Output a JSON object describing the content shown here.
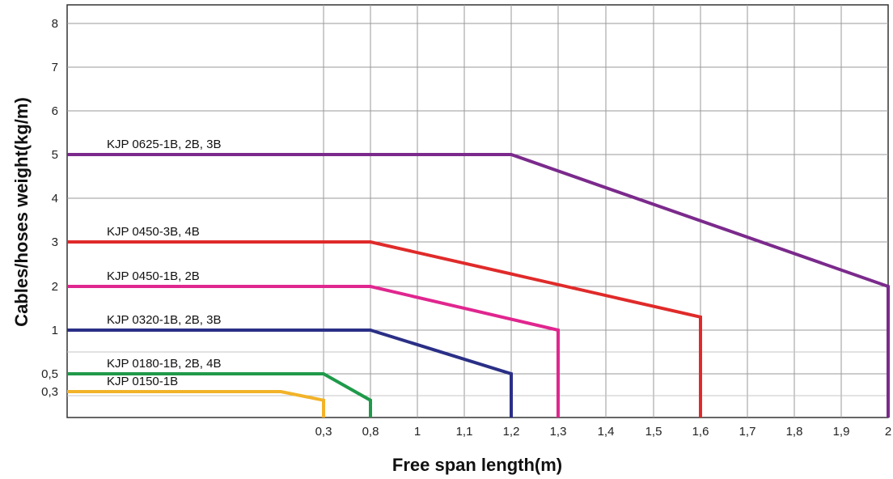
{
  "chart_data": {
    "type": "line",
    "xlabel": "Free span length(m)",
    "ylabel": "Cables/hoses weight(kg/m)",
    "x_ticks": [
      "0,3",
      "0,8",
      "1",
      "1,1",
      "1,2",
      "1,3",
      "1,4",
      "1,5",
      "1,6",
      "1,7",
      "1,8",
      "1,9",
      "2"
    ],
    "y_ticks": [
      "0,3",
      "0,5",
      "1",
      "2",
      "3",
      "4",
      "5",
      "6",
      "7",
      "8"
    ],
    "grid": true,
    "legend": "inline labels above each line",
    "series": [
      {
        "name": "KJP 0625-1B, 2B, 3B",
        "color": "#7b2a8c",
        "points": [
          [
            0,
            5
          ],
          [
            1.2,
            5
          ],
          [
            2,
            2
          ],
          [
            2,
            0
          ]
        ]
      },
      {
        "name": "KJP 0450-3B, 4B",
        "color": "#e02a2a",
        "points": [
          [
            0,
            3
          ],
          [
            0.8,
            3
          ],
          [
            1.6,
            1.3
          ],
          [
            1.6,
            0
          ]
        ]
      },
      {
        "name": "KJP 0450-1B, 2B",
        "color": "#e0268f",
        "points": [
          [
            0,
            2
          ],
          [
            0.8,
            2
          ],
          [
            1.3,
            1
          ],
          [
            1.3,
            0
          ]
        ]
      },
      {
        "name": "KJP 0320-1B, 2B, 3B",
        "color": "#2a2f86",
        "points": [
          [
            0,
            1
          ],
          [
            0.8,
            1
          ],
          [
            1.2,
            0.5
          ],
          [
            1.2,
            0
          ]
        ]
      },
      {
        "name": "KJP 0180-1B, 2B, 4B",
        "color": "#1f9a4a",
        "points": [
          [
            0,
            0.5
          ],
          [
            0.3,
            0.5
          ],
          [
            0.8,
            0.2
          ],
          [
            0.8,
            0
          ]
        ]
      },
      {
        "name": "KJP 0150-1B",
        "color": "#f2b32a",
        "points": [
          [
            0,
            0.3
          ],
          [
            0.25,
            0.3
          ],
          [
            0.3,
            0.2
          ],
          [
            0.3,
            0
          ]
        ]
      }
    ]
  }
}
